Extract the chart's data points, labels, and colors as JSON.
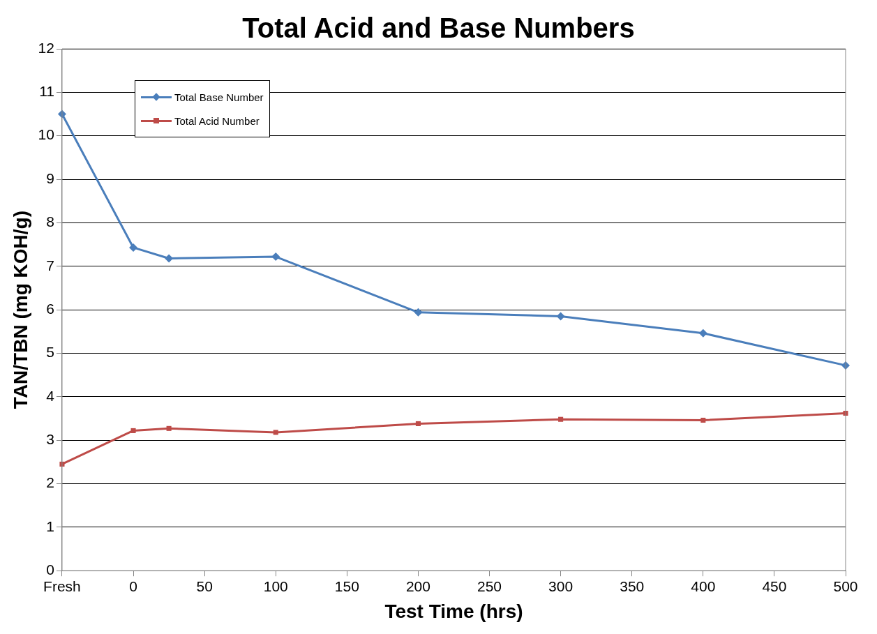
{
  "chart_data": {
    "type": "line",
    "title": "Total Acid and Base Numbers",
    "xlabel": "Test Time (hrs)",
    "ylabel": "TAN/TBN (mg KOH/g)",
    "x": [
      -50,
      0,
      25,
      100,
      200,
      300,
      400,
      500
    ],
    "series": [
      {
        "name": "Total Base Number",
        "color": "#4a7ebb",
        "marker": "diamond",
        "values": [
          10.5,
          7.43,
          7.18,
          7.22,
          5.94,
          5.85,
          5.46,
          4.72
        ]
      },
      {
        "name": "Total Acid Number",
        "color": "#be4b48",
        "marker": "square",
        "values": [
          2.45,
          3.22,
          3.27,
          3.18,
          3.38,
          3.48,
          3.46,
          3.62
        ]
      }
    ],
    "xlim": [
      -50,
      500
    ],
    "xticks": [
      {
        "value": -50,
        "label": "Fresh"
      },
      0,
      50,
      100,
      150,
      200,
      250,
      300,
      350,
      400,
      450,
      500
    ],
    "ylim": [
      0,
      12
    ],
    "yticks": [
      0,
      1,
      2,
      3,
      4,
      5,
      6,
      7,
      8,
      9,
      10,
      11,
      12
    ],
    "grid": "y",
    "legend": "top left"
  }
}
